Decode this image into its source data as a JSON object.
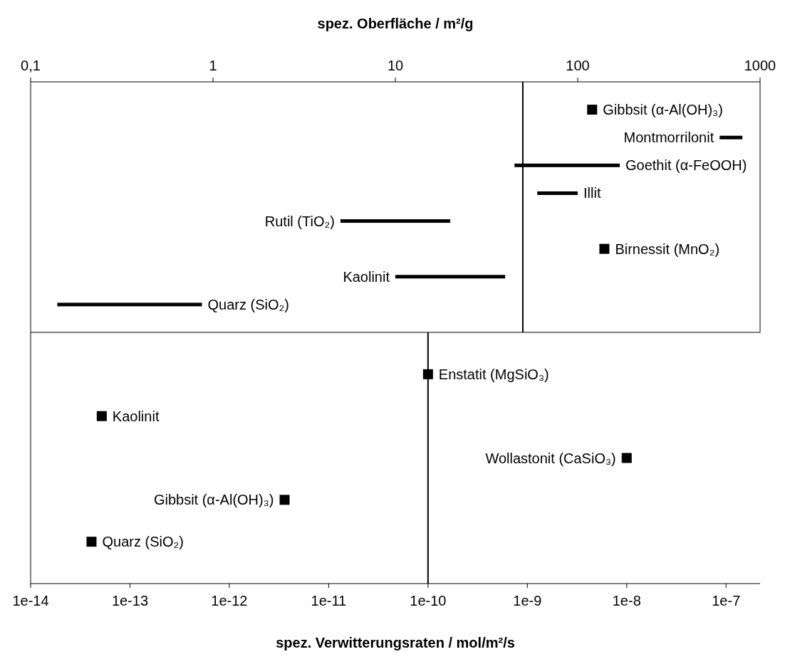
{
  "chart_data": [
    {
      "type": "bar",
      "orientation": "horizontal",
      "log": "x",
      "xlabel": "spez. Oberfläche  /  m²/g",
      "xlim": [
        0.1,
        1000
      ],
      "xticks": [
        {
          "value": 0.1,
          "label": "0,1"
        },
        1,
        10,
        100,
        1000
      ],
      "categories": [
        "Gibbsit (α-Al(OH)₃)",
        "Montmorrilonit",
        "Goethit (α-FeOOH)",
        "Illit",
        "Rutil (TiO₂)",
        "Birnessit (MnO₂)",
        "Kaolinit",
        "Quarz (SiO₂)"
      ],
      "series": [
        {
          "color": "#000000",
          "base": [
            null,
            600,
            45,
            60,
            5,
            null,
            10,
            0.14
          ],
          "values": [
            null,
            200,
            125,
            40,
            15,
            null,
            30,
            0.73
          ]
        },
        {
          "type": "scatter",
          "color": "#000000",
          "marker": "square",
          "values": [
            120,
            null,
            null,
            null,
            null,
            140,
            null,
            null
          ]
        }
      ],
      "ref_lines": [
        {
          "axis": "x",
          "value": 50,
          "color": "#000000"
        }
      ],
      "grid": false
    },
    {
      "type": "scatter",
      "orientation": "horizontal",
      "log": "x",
      "xlabel": "spez. Verwitterungsraten  /  mol/m²/s",
      "xlim": [
        1e-14,
        2.2e-07
      ],
      "xticks": [
        {
          "value": 1e-14,
          "label": "1e-14"
        },
        {
          "value": 1e-13,
          "label": "1e-13"
        },
        {
          "value": 1e-12,
          "label": "1e-12"
        },
        {
          "value": 1e-11,
          "label": "1e-11"
        },
        {
          "value": 1e-10,
          "label": "1e-10"
        },
        {
          "value": 1e-09,
          "label": "1e-9"
        },
        {
          "value": 1e-08,
          "label": "1e-8"
        },
        {
          "value": 1e-07,
          "label": "1e-7"
        }
      ],
      "categories": [
        "Enstatit (MgSiO₃)",
        "Kaolinit",
        "Wollastonit (CaSiO₃)",
        "Gibbsit (α-Al(OH)₃)",
        "Quarz (SiO₂)"
      ],
      "series": [
        {
          "color": "#000000",
          "marker": "square",
          "values": [
            1e-10,
            5.2e-14,
            1e-08,
            3.6e-12,
            4.1e-14
          ]
        }
      ],
      "ref_lines": [
        {
          "axis": "x",
          "value": 1e-10,
          "color": "#000000"
        }
      ],
      "grid": false
    }
  ]
}
